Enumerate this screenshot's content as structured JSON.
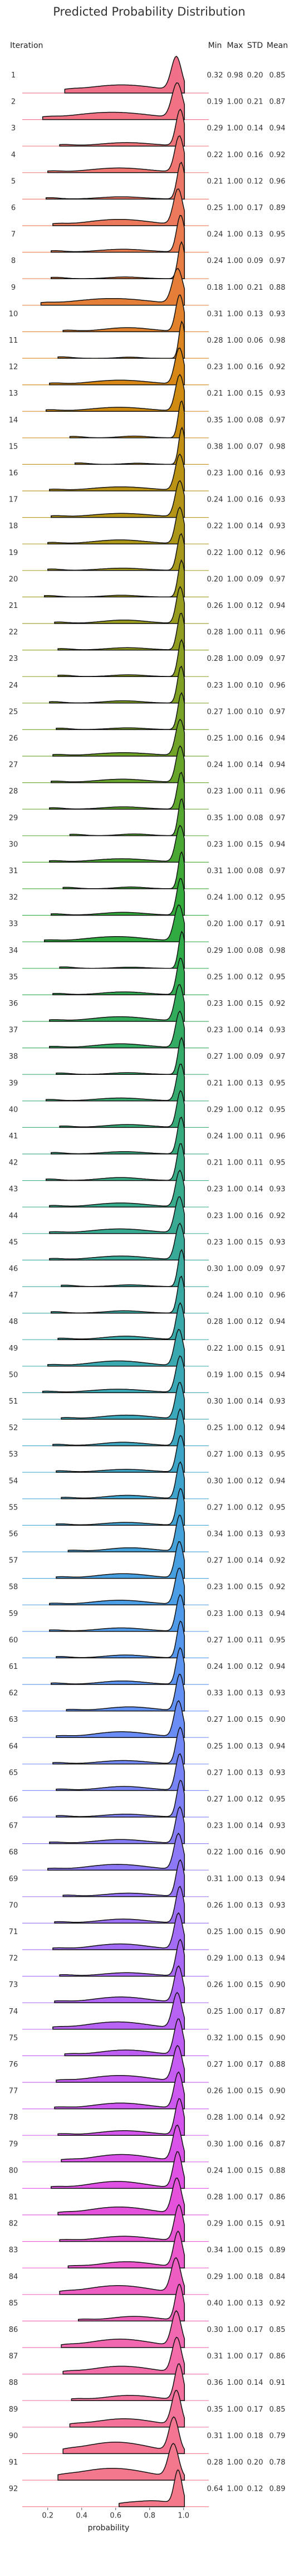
{
  "chart_data": {
    "type": "ridgeline",
    "title": "Predicted Probability Distribution",
    "ylabel": "Iteration",
    "xlabel": "probability",
    "xticks": [
      "0.2",
      "0.4",
      "0.6",
      "0.8",
      "1.0"
    ],
    "xlim": [
      0.05,
      1.05
    ],
    "stat_headers": [
      "Min",
      "Max",
      "STD",
      "Mean"
    ],
    "grid": false,
    "rows": [
      {
        "iteration": "1",
        "min": "0.32",
        "max": "0.98",
        "std": "0.20",
        "mean": "0.85",
        "color": "#f0708a"
      },
      {
        "iteration": "2",
        "min": "0.19",
        "max": "1.00",
        "std": "0.21",
        "mean": "0.87",
        "color": "#f07283"
      },
      {
        "iteration": "3",
        "min": "0.29",
        "max": "1.00",
        "std": "0.14",
        "mean": "0.94",
        "color": "#ef747a"
      },
      {
        "iteration": "4",
        "min": "0.22",
        "max": "1.00",
        "std": "0.16",
        "mean": "0.92",
        "color": "#ee7570"
      },
      {
        "iteration": "5",
        "min": "0.21",
        "max": "1.00",
        "std": "0.12",
        "mean": "0.96",
        "color": "#ed7766"
      },
      {
        "iteration": "6",
        "min": "0.25",
        "max": "1.00",
        "std": "0.17",
        "mean": "0.89",
        "color": "#ec795b"
      },
      {
        "iteration": "7",
        "min": "0.24",
        "max": "1.00",
        "std": "0.13",
        "mean": "0.95",
        "color": "#ea7b4f"
      },
      {
        "iteration": "8",
        "min": "0.24",
        "max": "1.00",
        "std": "0.09",
        "mean": "0.97",
        "color": "#e87d44"
      },
      {
        "iteration": "9",
        "min": "0.18",
        "max": "1.00",
        "std": "0.21",
        "mean": "0.88",
        "color": "#e57f38"
      },
      {
        "iteration": "10",
        "min": "0.31",
        "max": "1.00",
        "std": "0.13",
        "mean": "0.93",
        "color": "#e1812c"
      },
      {
        "iteration": "11",
        "min": "0.28",
        "max": "1.00",
        "std": "0.06",
        "mean": "0.98",
        "color": "#dc8420"
      },
      {
        "iteration": "12",
        "min": "0.23",
        "max": "1.00",
        "std": "0.16",
        "mean": "0.92",
        "color": "#d68715"
      },
      {
        "iteration": "13",
        "min": "0.21",
        "max": "1.00",
        "std": "0.15",
        "mean": "0.93",
        "color": "#cf8a10"
      },
      {
        "iteration": "14",
        "min": "0.35",
        "max": "1.00",
        "std": "0.08",
        "mean": "0.97",
        "color": "#c88d10"
      },
      {
        "iteration": "15",
        "min": "0.38",
        "max": "1.00",
        "std": "0.07",
        "mean": "0.98",
        "color": "#c18f12"
      },
      {
        "iteration": "16",
        "min": "0.23",
        "max": "1.00",
        "std": "0.16",
        "mean": "0.93",
        "color": "#ba9214"
      },
      {
        "iteration": "17",
        "min": "0.24",
        "max": "1.00",
        "std": "0.16",
        "mean": "0.93",
        "color": "#b39416"
      },
      {
        "iteration": "18",
        "min": "0.22",
        "max": "1.00",
        "std": "0.14",
        "mean": "0.93",
        "color": "#ac9618"
      },
      {
        "iteration": "19",
        "min": "0.22",
        "max": "1.00",
        "std": "0.12",
        "mean": "0.96",
        "color": "#a5981a"
      },
      {
        "iteration": "20",
        "min": "0.20",
        "max": "1.00",
        "std": "0.09",
        "mean": "0.97",
        "color": "#9e9a1c"
      },
      {
        "iteration": "21",
        "min": "0.26",
        "max": "1.00",
        "std": "0.12",
        "mean": "0.94",
        "color": "#979c1e"
      },
      {
        "iteration": "22",
        "min": "0.28",
        "max": "1.00",
        "std": "0.11",
        "mean": "0.96",
        "color": "#909d20"
      },
      {
        "iteration": "23",
        "min": "0.28",
        "max": "1.00",
        "std": "0.09",
        "mean": "0.97",
        "color": "#889f22"
      },
      {
        "iteration": "24",
        "min": "0.23",
        "max": "1.00",
        "std": "0.10",
        "mean": "0.96",
        "color": "#80a024"
      },
      {
        "iteration": "25",
        "min": "0.27",
        "max": "1.00",
        "std": "0.10",
        "mean": "0.97",
        "color": "#78a226"
      },
      {
        "iteration": "26",
        "min": "0.25",
        "max": "1.00",
        "std": "0.16",
        "mean": "0.94",
        "color": "#70a328"
      },
      {
        "iteration": "27",
        "min": "0.24",
        "max": "1.00",
        "std": "0.14",
        "mean": "0.94",
        "color": "#67a52a"
      },
      {
        "iteration": "28",
        "min": "0.23",
        "max": "1.00",
        "std": "0.11",
        "mean": "0.96",
        "color": "#5ea62c"
      },
      {
        "iteration": "29",
        "min": "0.35",
        "max": "1.00",
        "std": "0.08",
        "mean": "0.97",
        "color": "#54a72f"
      },
      {
        "iteration": "30",
        "min": "0.23",
        "max": "1.00",
        "std": "0.15",
        "mean": "0.94",
        "color": "#49a832"
      },
      {
        "iteration": "31",
        "min": "0.31",
        "max": "1.00",
        "std": "0.08",
        "mean": "0.97",
        "color": "#3ea936"
      },
      {
        "iteration": "32",
        "min": "0.24",
        "max": "1.00",
        "std": "0.12",
        "mean": "0.95",
        "color": "#33aa3b"
      },
      {
        "iteration": "33",
        "min": "0.20",
        "max": "1.00",
        "std": "0.17",
        "mean": "0.91",
        "color": "#2fab42"
      },
      {
        "iteration": "34",
        "min": "0.29",
        "max": "1.00",
        "std": "0.08",
        "mean": "0.98",
        "color": "#2fab4a"
      },
      {
        "iteration": "35",
        "min": "0.25",
        "max": "1.00",
        "std": "0.12",
        "mean": "0.95",
        "color": "#31ab52"
      },
      {
        "iteration": "36",
        "min": "0.23",
        "max": "1.00",
        "std": "0.15",
        "mean": "0.92",
        "color": "#32ab5a"
      },
      {
        "iteration": "37",
        "min": "0.23",
        "max": "1.00",
        "std": "0.14",
        "mean": "0.93",
        "color": "#33ab62"
      },
      {
        "iteration": "38",
        "min": "0.27",
        "max": "1.00",
        "std": "0.09",
        "mean": "0.97",
        "color": "#34ab69"
      },
      {
        "iteration": "39",
        "min": "0.21",
        "max": "1.00",
        "std": "0.13",
        "mean": "0.95",
        "color": "#35ab70"
      },
      {
        "iteration": "40",
        "min": "0.29",
        "max": "1.00",
        "std": "0.12",
        "mean": "0.95",
        "color": "#36ab77"
      },
      {
        "iteration": "41",
        "min": "0.24",
        "max": "1.00",
        "std": "0.11",
        "mean": "0.96",
        "color": "#36ab7e"
      },
      {
        "iteration": "42",
        "min": "0.21",
        "max": "1.00",
        "std": "0.11",
        "mean": "0.95",
        "color": "#37ab85"
      },
      {
        "iteration": "43",
        "min": "0.23",
        "max": "1.00",
        "std": "0.14",
        "mean": "0.93",
        "color": "#37ab8b"
      },
      {
        "iteration": "44",
        "min": "0.23",
        "max": "1.00",
        "std": "0.16",
        "mean": "0.92",
        "color": "#38aa91"
      },
      {
        "iteration": "45",
        "min": "0.23",
        "max": "1.00",
        "std": "0.15",
        "mean": "0.93",
        "color": "#38aa97"
      },
      {
        "iteration": "46",
        "min": "0.30",
        "max": "1.00",
        "std": "0.09",
        "mean": "0.97",
        "color": "#39aa9d"
      },
      {
        "iteration": "47",
        "min": "0.24",
        "max": "1.00",
        "std": "0.10",
        "mean": "0.96",
        "color": "#39aaa3"
      },
      {
        "iteration": "48",
        "min": "0.28",
        "max": "1.00",
        "std": "0.12",
        "mean": "0.94",
        "color": "#39a9a9"
      },
      {
        "iteration": "49",
        "min": "0.22",
        "max": "1.00",
        "std": "0.15",
        "mean": "0.91",
        "color": "#3aa9af"
      },
      {
        "iteration": "50",
        "min": "0.19",
        "max": "1.00",
        "std": "0.15",
        "mean": "0.94",
        "color": "#3aa8b5"
      },
      {
        "iteration": "51",
        "min": "0.30",
        "max": "1.00",
        "std": "0.14",
        "mean": "0.93",
        "color": "#3ba7bb"
      },
      {
        "iteration": "52",
        "min": "0.25",
        "max": "1.00",
        "std": "0.12",
        "mean": "0.94",
        "color": "#3ca6c1"
      },
      {
        "iteration": "53",
        "min": "0.27",
        "max": "1.00",
        "std": "0.13",
        "mean": "0.95",
        "color": "#3da5c7"
      },
      {
        "iteration": "54",
        "min": "0.30",
        "max": "1.00",
        "std": "0.12",
        "mean": "0.94",
        "color": "#3fa4cd"
      },
      {
        "iteration": "55",
        "min": "0.27",
        "max": "1.00",
        "std": "0.12",
        "mean": "0.95",
        "color": "#41a3d3"
      },
      {
        "iteration": "56",
        "min": "0.34",
        "max": "1.00",
        "std": "0.13",
        "mean": "0.93",
        "color": "#44a1d9"
      },
      {
        "iteration": "57",
        "min": "0.27",
        "max": "1.00",
        "std": "0.14",
        "mean": "0.92",
        "color": "#479fdf"
      },
      {
        "iteration": "58",
        "min": "0.23",
        "max": "1.00",
        "std": "0.15",
        "mean": "0.92",
        "color": "#4b9de5"
      },
      {
        "iteration": "59",
        "min": "0.23",
        "max": "1.00",
        "std": "0.13",
        "mean": "0.94",
        "color": "#509aea"
      },
      {
        "iteration": "60",
        "min": "0.27",
        "max": "1.00",
        "std": "0.11",
        "mean": "0.95",
        "color": "#5697ee"
      },
      {
        "iteration": "61",
        "min": "0.24",
        "max": "1.00",
        "std": "0.12",
        "mean": "0.94",
        "color": "#5c94f1"
      },
      {
        "iteration": "62",
        "min": "0.33",
        "max": "1.00",
        "std": "0.13",
        "mean": "0.93",
        "color": "#6390f3"
      },
      {
        "iteration": "63",
        "min": "0.27",
        "max": "1.00",
        "std": "0.15",
        "mean": "0.90",
        "color": "#6a8cf5"
      },
      {
        "iteration": "64",
        "min": "0.25",
        "max": "1.00",
        "std": "0.13",
        "mean": "0.94",
        "color": "#7188f6"
      },
      {
        "iteration": "65",
        "min": "0.27",
        "max": "1.00",
        "std": "0.13",
        "mean": "0.93",
        "color": "#7884f6"
      },
      {
        "iteration": "66",
        "min": "0.27",
        "max": "1.00",
        "std": "0.12",
        "mean": "0.95",
        "color": "#7f80f6"
      },
      {
        "iteration": "67",
        "min": "0.23",
        "max": "1.00",
        "std": "0.14",
        "mean": "0.93",
        "color": "#867cf6"
      },
      {
        "iteration": "68",
        "min": "0.22",
        "max": "1.00",
        "std": "0.16",
        "mean": "0.90",
        "color": "#8d78f5"
      },
      {
        "iteration": "69",
        "min": "0.31",
        "max": "1.00",
        "std": "0.13",
        "mean": "0.94",
        "color": "#9474f5"
      },
      {
        "iteration": "70",
        "min": "0.26",
        "max": "1.00",
        "std": "0.13",
        "mean": "0.93",
        "color": "#9b70f5"
      },
      {
        "iteration": "71",
        "min": "0.25",
        "max": "1.00",
        "std": "0.15",
        "mean": "0.90",
        "color": "#a26cf5"
      },
      {
        "iteration": "72",
        "min": "0.29",
        "max": "1.00",
        "std": "0.13",
        "mean": "0.94",
        "color": "#a969f4"
      },
      {
        "iteration": "73",
        "min": "0.26",
        "max": "1.00",
        "std": "0.15",
        "mean": "0.90",
        "color": "#b065f4"
      },
      {
        "iteration": "74",
        "min": "0.25",
        "max": "1.00",
        "std": "0.17",
        "mean": "0.87",
        "color": "#b762f3"
      },
      {
        "iteration": "75",
        "min": "0.32",
        "max": "1.00",
        "std": "0.15",
        "mean": "0.90",
        "color": "#be5ef2"
      },
      {
        "iteration": "76",
        "min": "0.27",
        "max": "1.00",
        "std": "0.17",
        "mean": "0.88",
        "color": "#c55bf1"
      },
      {
        "iteration": "77",
        "min": "0.26",
        "max": "1.00",
        "std": "0.15",
        "mean": "0.90",
        "color": "#cc58ef"
      },
      {
        "iteration": "78",
        "min": "0.28",
        "max": "1.00",
        "std": "0.14",
        "mean": "0.92",
        "color": "#d355ec"
      },
      {
        "iteration": "79",
        "min": "0.30",
        "max": "1.00",
        "std": "0.16",
        "mean": "0.87",
        "color": "#d953e8"
      },
      {
        "iteration": "80",
        "min": "0.24",
        "max": "1.00",
        "std": "0.15",
        "mean": "0.88",
        "color": "#df52e3"
      },
      {
        "iteration": "81",
        "min": "0.28",
        "max": "1.00",
        "std": "0.17",
        "mean": "0.86",
        "color": "#e452dc"
      },
      {
        "iteration": "82",
        "min": "0.29",
        "max": "1.00",
        "std": "0.15",
        "mean": "0.91",
        "color": "#e854d4"
      },
      {
        "iteration": "83",
        "min": "0.34",
        "max": "1.00",
        "std": "0.15",
        "mean": "0.89",
        "color": "#eb58cb"
      },
      {
        "iteration": "84",
        "min": "0.29",
        "max": "1.00",
        "std": "0.18",
        "mean": "0.84",
        "color": "#ee5dc2"
      },
      {
        "iteration": "85",
        "min": "0.40",
        "max": "1.00",
        "std": "0.13",
        "mean": "0.92",
        "color": "#f062b9"
      },
      {
        "iteration": "86",
        "min": "0.30",
        "max": "1.00",
        "std": "0.17",
        "mean": "0.85",
        "color": "#f167b0"
      },
      {
        "iteration": "87",
        "min": "0.31",
        "max": "1.00",
        "std": "0.17",
        "mean": "0.86",
        "color": "#f26ca7"
      },
      {
        "iteration": "88",
        "min": "0.36",
        "max": "1.00",
        "std": "0.14",
        "mean": "0.91",
        "color": "#f3709f"
      },
      {
        "iteration": "89",
        "min": "0.35",
        "max": "1.00",
        "std": "0.17",
        "mean": "0.85",
        "color": "#f37398"
      },
      {
        "iteration": "90",
        "min": "0.31",
        "max": "1.00",
        "std": "0.18",
        "mean": "0.79",
        "color": "#f37592"
      },
      {
        "iteration": "91",
        "min": "0.28",
        "max": "1.00",
        "std": "0.20",
        "mean": "0.78",
        "color": "#f3778d"
      },
      {
        "iteration": "92",
        "min": "0.64",
        "max": "1.00",
        "std": "0.12",
        "mean": "0.89",
        "color": "#f37889"
      }
    ]
  }
}
